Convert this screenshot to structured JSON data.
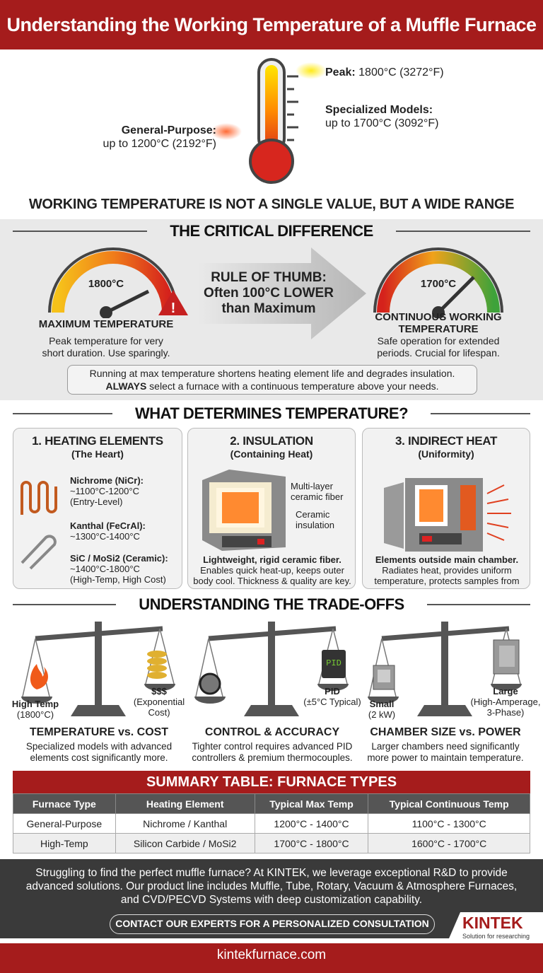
{
  "title": "Understanding the Working Temperature of a Muffle Furnace",
  "thermometer": {
    "peak_label": "Peak:",
    "peak_value": "1800°C (3272°F)",
    "specialized_label": "Specialized Models:",
    "specialized_value": "up to 1700°C (3092°F)",
    "general_label": "General-Purpose:",
    "general_value": "up to 1200°C (2192°F)"
  },
  "headline": "WORKING TEMPERATURE IS NOT A SINGLE VALUE, BUT A WIDE RANGE",
  "critical": {
    "title": "THE CRITICAL DIFFERENCE",
    "max": {
      "gauge": "1800°C",
      "label": "MAXIMUM TEMPERATURE",
      "desc1": "Peak temperature for very",
      "desc2": "short duration. Use sparingly."
    },
    "rule": {
      "l1": "RULE OF THUMB:",
      "l2": "Often 100°C LOWER",
      "l3": "than Maximum"
    },
    "cont": {
      "gauge": "1700°C",
      "label1": "CONTINUOUS WORKING",
      "label2": "TEMPERATURE",
      "desc1": "Safe operation for extended",
      "desc2": "periods. Crucial for lifespan."
    },
    "note1": "Running at max temperature shortens heating element life and degrades insulation.",
    "note2_bold": "ALWAYS",
    "note2": " select a furnace with a continuous temperature above your needs."
  },
  "determines": {
    "title": "WHAT DETERMINES TEMPERATURE?",
    "cards": [
      {
        "title": "1. HEATING ELEMENTS",
        "sub": "(The Heart)",
        "items": [
          {
            "name": "Nichrome (NiCr):",
            "range": "~1100°C-1200°C",
            "note": "(Entry-Level)"
          },
          {
            "name": "Kanthal (FeCrAl):",
            "range": "~1300°C-1400°C",
            "note": ""
          },
          {
            "name": "SiC / MoSi2 (Ceramic):",
            "range": "~1400°C-1800°C",
            "note": "(High-Temp, High Cost)"
          }
        ]
      },
      {
        "title": "2. INSULATION",
        "sub": "(Containing Heat)",
        "callout1": "Multi-layer ceramic fiber",
        "callout2": "Ceramic insulation",
        "bold": "Lightweight, rigid ceramic fiber.",
        "desc": "Enables quick heat-up, keeps outer body cool. Thickness & quality are key."
      },
      {
        "title": "3. INDIRECT HEAT",
        "sub": "(Uniformity)",
        "bold": "Elements outside main chamber.",
        "desc": "Radiates heat, provides uniform temperature, protects samples from"
      }
    ]
  },
  "tradeoffs": {
    "title": "UNDERSTANDING THE TRADE-OFFS",
    "items": [
      {
        "left1": "High Temp",
        "left2": "(1800°C)",
        "right1": "$$$",
        "right2": "(Exponential",
        "right3": "Cost)",
        "title": "TEMPERATURE vs. COST",
        "desc1": "Specialized models with advanced",
        "desc2": "elements cost significantly more."
      },
      {
        "left1": "",
        "left2": "",
        "right1": "PID",
        "right2": "(±5°C Typical)",
        "right3": "",
        "display": "PID",
        "title": "CONTROL & ACCURACY",
        "desc1": "Tighter control requires advanced PID",
        "desc2": "controllers & premium thermocouples."
      },
      {
        "left1": "Small",
        "left2": "(2 kW)",
        "right1": "Large",
        "right2": "(High-Amperage,",
        "right3": "3-Phase)",
        "title": "CHAMBER SIZE vs. POWER",
        "desc1": "Larger chambers need significantly",
        "desc2": "more power to maintain temperature."
      }
    ]
  },
  "table": {
    "title": "SUMMARY TABLE: FURNACE TYPES",
    "headers": [
      "Furnace Type",
      "Heating Element",
      "Typical Max Temp",
      "Typical Continuous Temp"
    ],
    "rows": [
      [
        "General-Purpose",
        "Nichrome / Kanthal",
        "1200°C - 1400°C",
        "1100°C - 1300°C"
      ],
      [
        "High-Temp",
        "Silicon Carbide / MoSi2",
        "1700°C - 1800°C",
        "1600°C - 1700°C"
      ]
    ]
  },
  "footer": {
    "text": "Struggling to find the perfect muffle furnace? At KINTEK, we leverage exceptional R&D to provide advanced solutions. Our product line includes Muffle, Tube, Rotary, Vacuum & Atmosphere Furnaces, and CVD/PECVD Systems with deep customization capability.",
    "cta": "CONTACT OUR EXPERTS FOR A PERSONALIZED CONSULTATION",
    "logo": "KINTEK",
    "tagline": "Solution for researching",
    "url": "kintekfurnace.com"
  },
  "colors": {
    "brand_red": "#a51c1c",
    "dark": "#3a3a3a"
  }
}
